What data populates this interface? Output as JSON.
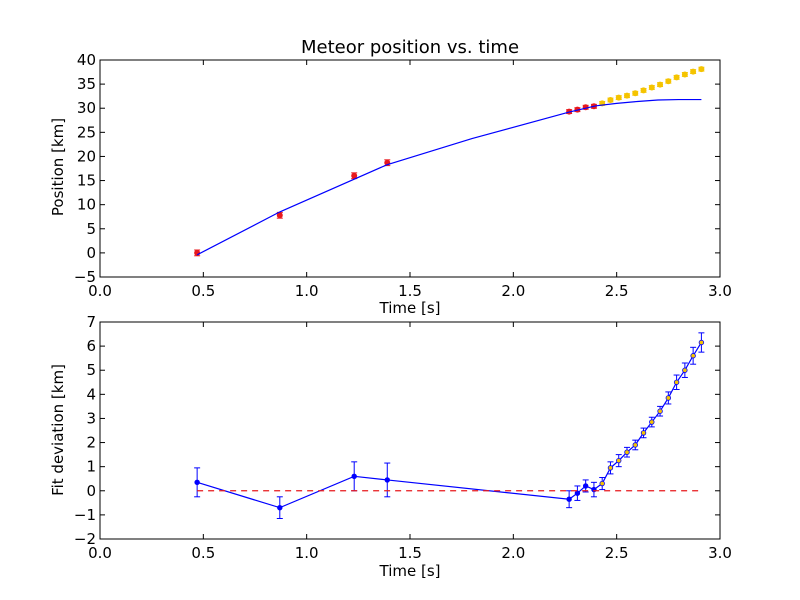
{
  "chart_data": [
    {
      "type": "scatter",
      "title": "Meteor position vs. time",
      "xlabel": "Time [s]",
      "ylabel": "Position [km]",
      "xlim": [
        0.0,
        3.0
      ],
      "ylim": [
        -5,
        40
      ],
      "xticks": [
        "0.0",
        "0.5",
        "1.0",
        "1.5",
        "2.0",
        "2.5",
        "3.0"
      ],
      "yticks": [
        "−5",
        "0",
        "5",
        "10",
        "15",
        "20",
        "25",
        "30",
        "35",
        "40"
      ],
      "grid": false,
      "series": [
        {
          "kind": "points",
          "color": "#e8191d",
          "points": [
            {
              "x": 0.47,
              "y": 0.0,
              "err": 0.6
            },
            {
              "x": 0.87,
              "y": 7.8,
              "err": 0.6
            },
            {
              "x": 1.23,
              "y": 16.0,
              "err": 0.6
            },
            {
              "x": 1.39,
              "y": 18.7,
              "err": 0.6
            },
            {
              "x": 2.27,
              "y": 29.3,
              "err": 0.4
            },
            {
              "x": 2.31,
              "y": 29.7,
              "err": 0.4
            },
            {
              "x": 2.35,
              "y": 30.2,
              "err": 0.4
            },
            {
              "x": 2.39,
              "y": 30.4,
              "err": 0.4
            }
          ]
        },
        {
          "kind": "points",
          "color": "#f5c400",
          "points": [
            {
              "x": 2.43,
              "y": 31.0,
              "err": 0.4
            },
            {
              "x": 2.47,
              "y": 31.7,
              "err": 0.4
            },
            {
              "x": 2.51,
              "y": 32.2,
              "err": 0.4
            },
            {
              "x": 2.55,
              "y": 32.6,
              "err": 0.4
            },
            {
              "x": 2.59,
              "y": 33.1,
              "err": 0.4
            },
            {
              "x": 2.63,
              "y": 33.7,
              "err": 0.4
            },
            {
              "x": 2.67,
              "y": 34.3,
              "err": 0.4
            },
            {
              "x": 2.71,
              "y": 34.9,
              "err": 0.4
            },
            {
              "x": 2.75,
              "y": 35.6,
              "err": 0.4
            },
            {
              "x": 2.79,
              "y": 36.4,
              "err": 0.4
            },
            {
              "x": 2.83,
              "y": 37.0,
              "err": 0.4
            },
            {
              "x": 2.87,
              "y": 37.6,
              "err": 0.4
            },
            {
              "x": 2.91,
              "y": 38.1,
              "err": 0.4
            }
          ]
        },
        {
          "kind": "line",
          "color": "#0000ff",
          "x": [
            0.47,
            0.87,
            1.39,
            1.8,
            2.27,
            2.4,
            2.5,
            2.6,
            2.7,
            2.8,
            2.91
          ],
          "y": [
            -0.4,
            8.5,
            18.3,
            23.7,
            29.2,
            30.5,
            31.0,
            31.4,
            31.7,
            31.8,
            31.8
          ]
        }
      ]
    },
    {
      "type": "line",
      "xlabel": "Time [s]",
      "ylabel": "Fit deviation [km]",
      "xlim": [
        0.0,
        3.0
      ],
      "ylim": [
        -2,
        7
      ],
      "xticks": [
        "0.0",
        "0.5",
        "1.0",
        "1.5",
        "2.0",
        "2.5",
        "3.0"
      ],
      "yticks": [
        "−2",
        "−1",
        "0",
        "1",
        "2",
        "3",
        "4",
        "5",
        "6",
        "7"
      ],
      "grid": false,
      "series": [
        {
          "kind": "errorline",
          "color": "#0000ff",
          "points": [
            {
              "x": 0.47,
              "y": 0.35,
              "err": 0.6
            },
            {
              "x": 0.87,
              "y": -0.7,
              "err": 0.45
            },
            {
              "x": 1.23,
              "y": 0.6,
              "err": 0.6
            },
            {
              "x": 1.39,
              "y": 0.45,
              "err": 0.7
            },
            {
              "x": 2.27,
              "y": -0.35,
              "err": 0.35
            },
            {
              "x": 2.31,
              "y": -0.1,
              "err": 0.3
            },
            {
              "x": 2.35,
              "y": 0.2,
              "err": 0.25
            },
            {
              "x": 2.39,
              "y": 0.05,
              "err": 0.3
            },
            {
              "x": 2.43,
              "y": 0.3,
              "err": 0.25
            },
            {
              "x": 2.47,
              "y": 0.95,
              "err": 0.25
            },
            {
              "x": 2.51,
              "y": 1.25,
              "err": 0.25
            },
            {
              "x": 2.55,
              "y": 1.6,
              "err": 0.2
            },
            {
              "x": 2.59,
              "y": 1.9,
              "err": 0.2
            },
            {
              "x": 2.63,
              "y": 2.4,
              "err": 0.2
            },
            {
              "x": 2.67,
              "y": 2.85,
              "err": 0.2
            },
            {
              "x": 2.71,
              "y": 3.3,
              "err": 0.2
            },
            {
              "x": 2.75,
              "y": 3.85,
              "err": 0.25
            },
            {
              "x": 2.79,
              "y": 4.5,
              "err": 0.3
            },
            {
              "x": 2.83,
              "y": 5.0,
              "err": 0.3
            },
            {
              "x": 2.87,
              "y": 5.6,
              "err": 0.35
            },
            {
              "x": 2.91,
              "y": 6.15,
              "err": 0.4
            }
          ],
          "marker_colors": [
            "#0000ff",
            "#0000ff",
            "#0000ff",
            "#0000ff",
            "#0000ff",
            "#0000ff",
            "#0000ff",
            "#0000ff",
            "#f5c400",
            "#f5c400",
            "#f5c400",
            "#f5c400",
            "#f5c400",
            "#f5c400",
            "#f5c400",
            "#f5c400",
            "#f5c400",
            "#f5c400",
            "#f5c400",
            "#f5c400",
            "#f5c400"
          ]
        },
        {
          "kind": "reference",
          "color": "#e8191d",
          "style": "dashed",
          "x": [
            0.47,
            2.91
          ],
          "y": [
            0,
            0
          ]
        }
      ]
    }
  ]
}
